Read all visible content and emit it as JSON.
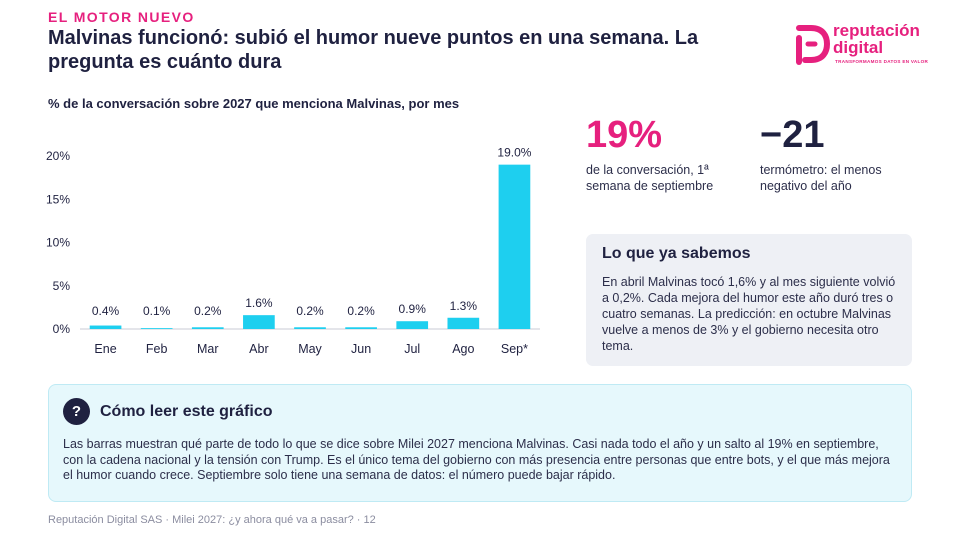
{
  "header": {
    "kicker": "EL MOTOR NUEVO",
    "title": "Malvinas funcionó: subió el humor nueve puntos en una semana. La pregunta es cuánto dura"
  },
  "logo": {
    "line1": "reputación",
    "line2": "digital",
    "tagline": "TRANSFORMAMOS DATOS EN VALOR",
    "color": "#e6207e"
  },
  "chart_title": "% de la conversación sobre 2027 que menciona Malvinas, por mes",
  "chart_data": {
    "type": "bar",
    "categories": [
      "Ene",
      "Feb",
      "Mar",
      "Abr",
      "May",
      "Jun",
      "Jul",
      "Ago",
      "Sep*"
    ],
    "values": [
      0.4,
      0.1,
      0.2,
      1.6,
      0.2,
      0.2,
      0.9,
      1.3,
      19.0
    ],
    "data_labels": [
      "0.4%",
      "0.1%",
      "0.2%",
      "1.6%",
      "0.2%",
      "0.2%",
      "0.9%",
      "1.3%",
      "19.0%"
    ],
    "ylim": [
      0,
      20
    ],
    "yticks": [
      0,
      5,
      10,
      15,
      20
    ],
    "ytick_labels": [
      "0%",
      "5%",
      "10%",
      "15%",
      "20%"
    ],
    "grid": false,
    "bar_color": "#1ecfef",
    "axis_color": "#1f2140"
  },
  "kpis": [
    {
      "value": "19%",
      "label": "de la conversación, 1ª semana de septiembre",
      "color": "#e6207e"
    },
    {
      "value": "−21",
      "label": "termómetro: el menos negativo del año",
      "color": "#1f2140"
    }
  ],
  "known": {
    "title": "Lo que ya sabemos",
    "body": "En abril Malvinas tocó 1,6% y al mes siguiente volvió a 0,2%. Cada mejora del humor este año duró tres o cuatro semanas. La predicción: en octubre Malvinas vuelve a menos de 3% y el gobierno necesita otro tema."
  },
  "howto": {
    "icon": "question-icon",
    "icon_glyph": "?",
    "title": "Cómo leer este gráfico",
    "body": "Las barras muestran qué parte de todo lo que se dice sobre Milei 2027 menciona Malvinas. Casi nada todo el año y un salto al 19% en septiembre, con la cadena nacional y la tensión con Trump. Es el único tema del gobierno con más presencia entre personas que entre bots, y el que más mejora el humor cuando crece. Septiembre solo tiene una semana de datos: el número puede bajar rápido."
  },
  "footer": "Reputación Digital SAS  ·  Milei 2027: ¿y ahora qué va a pasar?  ·  12"
}
